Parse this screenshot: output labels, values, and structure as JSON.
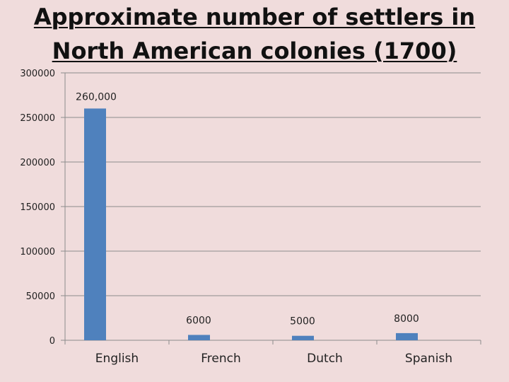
{
  "chart_data": {
    "type": "bar",
    "title": "Approximate number of settlers in North American colonies (1700)",
    "categories": [
      "English",
      "French",
      "Dutch",
      "Spanish"
    ],
    "values": [
      260000,
      6000,
      5000,
      8000
    ],
    "data_labels": [
      "260,000",
      "6000",
      "5000",
      "8000"
    ],
    "ylim": [
      0,
      300000
    ],
    "yticks": [
      0,
      50000,
      100000,
      150000,
      200000,
      250000,
      300000
    ],
    "ytick_labels": [
      "0",
      "50000",
      "100000",
      "150000",
      "200000",
      "250000",
      "300000"
    ],
    "xlabel": "",
    "ylabel": "",
    "grid": true,
    "legend": "none",
    "colors": {
      "bar": "#4f81bd",
      "grid": "#8c8c8c",
      "background": "#f0dcdc"
    }
  }
}
